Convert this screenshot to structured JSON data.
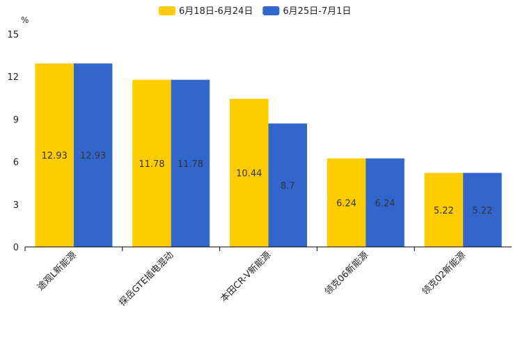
{
  "chart_data": {
    "type": "bar",
    "title": "",
    "ylabel": "%",
    "xlabel": "",
    "ylim": [
      0,
      15
    ],
    "yticks": [
      "0",
      "3",
      "6",
      "9",
      "12",
      "15"
    ],
    "categories": [
      "途观L新能源",
      "探岳GTE插电混动",
      "本田CR-V新能源",
      "领克06新能源",
      "领克02新能源"
    ],
    "series": [
      {
        "name": "6月18日-6月24日",
        "color": "#FFCC00",
        "values": [
          12.93,
          11.78,
          10.44,
          6.24,
          5.22
        ],
        "labels": [
          "12.93",
          "11.78",
          "10.44",
          "6.24",
          "5.22"
        ]
      },
      {
        "name": "6月25日-7月1日",
        "color": "#3366CC",
        "values": [
          12.93,
          11.78,
          8.7,
          6.24,
          5.22
        ],
        "labels": [
          "12.93",
          "11.78",
          "8.7",
          "6.24",
          "5.22"
        ]
      }
    ],
    "legend": "top-center",
    "grid": false
  }
}
